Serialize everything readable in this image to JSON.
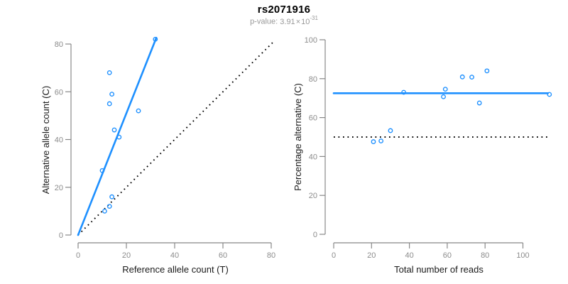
{
  "header": {
    "title": "rs2071916",
    "pvalue": {
      "label": "p-value:",
      "mantissa": "3.91",
      "times": "×",
      "base": "10",
      "exponent": "-31"
    }
  },
  "colors": {
    "accent_blue": "#1E90FF",
    "axis_line_gray": "#888888",
    "tick_label_gray": "#8c8c8c",
    "axis_title_dark": "#1a1a1a",
    "subtitle_gray": "#999999",
    "reference_black": "#000000"
  },
  "chart_data": [
    {
      "type": "scatter",
      "panel": "left",
      "xlabel": "Reference allele count (T)",
      "ylabel": "Alternative allele count (C)",
      "xlim": [
        0,
        82
      ],
      "ylim": [
        0,
        82
      ],
      "xticks": [
        0,
        20,
        40,
        60,
        80
      ],
      "yticks": [
        0,
        20,
        40,
        60,
        80
      ],
      "grid": false,
      "points": [
        [
          32,
          82
        ],
        [
          13,
          68
        ],
        [
          14,
          59
        ],
        [
          13,
          55
        ],
        [
          25,
          52
        ],
        [
          15,
          44
        ],
        [
          17,
          41
        ],
        [
          10,
          27
        ],
        [
          14,
          16
        ],
        [
          13,
          12
        ],
        [
          11,
          10
        ]
      ],
      "fit_line": {
        "style": "solid",
        "color": "#1E90FF",
        "x1": 0,
        "y1": 0,
        "x2": 32.4,
        "y2": 82.6
      },
      "reference_line": {
        "style": "dotted",
        "color": "#000000",
        "x1": 0,
        "y1": 0,
        "x2": 81.5,
        "y2": 81.5
      }
    },
    {
      "type": "scatter",
      "panel": "right",
      "xlabel": "Total number of reads",
      "ylabel": "Percentage alternative (C)",
      "xlim": [
        0,
        114
      ],
      "ylim": [
        0,
        100
      ],
      "xticks": [
        0,
        20,
        40,
        60,
        80,
        100
      ],
      "yticks": [
        0,
        20,
        40,
        60,
        80,
        100
      ],
      "grid": false,
      "points": [
        [
          21,
          47.6
        ],
        [
          25,
          48
        ],
        [
          30,
          53.3
        ],
        [
          37,
          73
        ],
        [
          58,
          70.7
        ],
        [
          59,
          74.6
        ],
        [
          68,
          80.9
        ],
        [
          73,
          80.8
        ],
        [
          77,
          67.5
        ],
        [
          81,
          84
        ],
        [
          114,
          71.9
        ]
      ],
      "fit_line": {
        "style": "solid",
        "color": "#1E90FF",
        "x1": 0,
        "y1": 72.5,
        "x2": 113.2,
        "y2": 72.5
      },
      "reference_line": {
        "style": "dotted",
        "color": "#000000",
        "x1": 0,
        "y1": 50,
        "x2": 113.2,
        "y2": 50
      }
    }
  ]
}
